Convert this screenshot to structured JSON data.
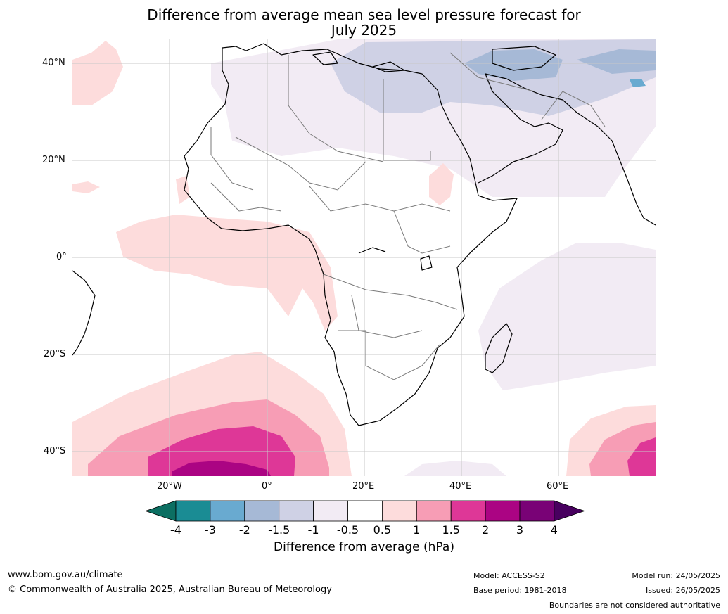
{
  "title": {
    "line1": "Difference from average mean sea level pressure forecast for",
    "line2": "July 2025"
  },
  "map": {
    "lat_labels": [
      "40°N",
      "20°N",
      "0°",
      "20°S",
      "40°S"
    ],
    "lon_labels": [
      "20°W",
      "0°",
      "20°E",
      "40°E",
      "60°E"
    ],
    "extent": {
      "lon_min": -40,
      "lon_max": 80,
      "lat_min": -45,
      "lat_max": 45
    }
  },
  "colorbar": {
    "ticks": [
      "-4",
      "-3",
      "-2",
      "-1.5",
      "-1",
      "-0.5",
      "0.5",
      "1",
      "1.5",
      "2",
      "3",
      "4"
    ],
    "colors": [
      "#0c6f62",
      "#1a8c94",
      "#69aad0",
      "#a6b9d6",
      "#cfd1e5",
      "#f2ebf4",
      "#ffffff",
      "#fddcdc",
      "#f79db5",
      "#de3797",
      "#ab0483",
      "#790276",
      "#48005f"
    ],
    "label": "Difference from average (hPa)"
  },
  "footer": {
    "url": "www.bom.gov.au/climate",
    "copyright": "© Commonwealth of Australia 2025, Australian Bureau of Meteorology",
    "model": "Model: ACCESS-S2",
    "base_period": "Base period: 1981-2018",
    "model_run": "Model run: 24/05/2025",
    "issued": "Issued: 26/05/2025",
    "disclaimer": "Boundaries are not considered authoritative"
  }
}
